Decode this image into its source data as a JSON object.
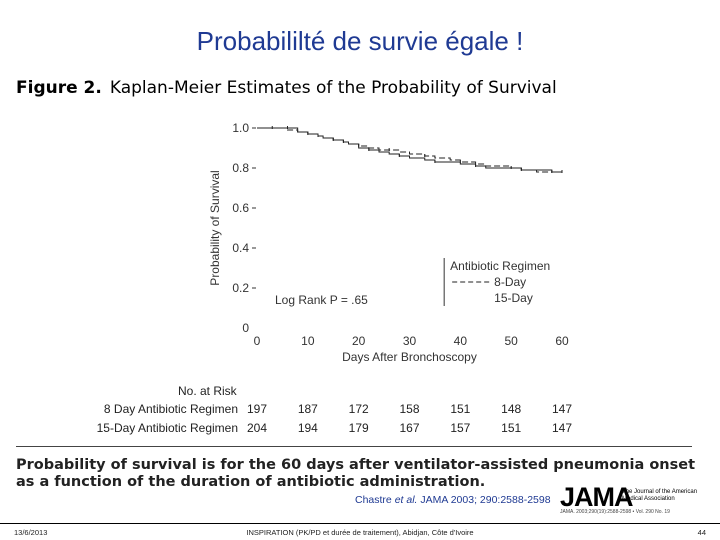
{
  "slide": {
    "title": "Probabililté de survie égale !"
  },
  "figure": {
    "label": "Figure 2.",
    "caption": "Kaplan-Meier Estimates of the Probability of Survival",
    "footnote": "Probability of survival is for the 60 days after ventilator-assisted pneumonia onset as a function of the duration of antibiotic administration."
  },
  "chart_data": {
    "type": "line",
    "title": "",
    "xlabel": "Days After Bronchoscopy",
    "ylabel": "Probability of Survival",
    "xlim": [
      0,
      60
    ],
    "ylim": [
      0,
      1.0
    ],
    "x_ticks": [
      "0",
      "10",
      "20",
      "30",
      "40",
      "50",
      "60"
    ],
    "y_ticks": [
      "0",
      "0.2",
      "0.4",
      "0.6",
      "0.8",
      "1.0"
    ],
    "annotation": "Log Rank P = .65",
    "legend": {
      "title": "Antibiotic Regimen",
      "placement": "bottom-right",
      "entries": [
        "8-Day",
        "15-Day"
      ]
    },
    "series": [
      {
        "name": "8-Day",
        "style": "dashed",
        "x": [
          1,
          3,
          6,
          8,
          10,
          12,
          13,
          15,
          17,
          18,
          20,
          22,
          24,
          26,
          28,
          30,
          33,
          35,
          38,
          40,
          43,
          45,
          50,
          52,
          55,
          58,
          60
        ],
        "y": [
          1.0,
          1.0,
          0.99,
          0.98,
          0.97,
          0.96,
          0.95,
          0.94,
          0.93,
          0.92,
          0.91,
          0.9,
          0.89,
          0.89,
          0.88,
          0.87,
          0.86,
          0.85,
          0.84,
          0.83,
          0.82,
          0.81,
          0.8,
          0.79,
          0.78,
          0.78,
          0.78
        ]
      },
      {
        "name": "15-Day",
        "style": "solid",
        "x": [
          0,
          6,
          8,
          10,
          12,
          13,
          15,
          17,
          18,
          20,
          22,
          24,
          26,
          28,
          30,
          33,
          35,
          38,
          40,
          43,
          45,
          50,
          52,
          55,
          58,
          60
        ],
        "y": [
          1.0,
          1.0,
          0.98,
          0.97,
          0.96,
          0.95,
          0.94,
          0.93,
          0.92,
          0.9,
          0.89,
          0.88,
          0.87,
          0.86,
          0.85,
          0.84,
          0.83,
          0.83,
          0.82,
          0.81,
          0.8,
          0.8,
          0.79,
          0.79,
          0.78,
          0.78
        ]
      }
    ]
  },
  "risk_table": {
    "title": "No. at Risk",
    "columns_days": [
      0,
      10,
      20,
      30,
      40,
      50,
      60
    ],
    "rows": [
      {
        "label": "8 Day Antibiotic Regimen",
        "values": [
          "197",
          "187",
          "172",
          "158",
          "151",
          "148",
          "147"
        ]
      },
      {
        "label": "15-Day Antibiotic Regimen",
        "values": [
          "204",
          "194",
          "179",
          "167",
          "157",
          "151",
          "147"
        ]
      }
    ]
  },
  "citation": {
    "authors": "Chastre ",
    "etal": "et al.",
    "source": " JAMA 2003; 290:2588-2598"
  },
  "journal": {
    "logo": "JAMA",
    "subtitle": "The Journal of the American Medical Association",
    "reference": "JAMA. 2003;290(19):2588-2598 • Vol. 290 No. 19"
  },
  "footer": {
    "date": "13/6/2013",
    "center": "INSPIRATION (PK/PD et durée de traitement), Abidjan, Côte d'Ivoire",
    "page": "44"
  }
}
